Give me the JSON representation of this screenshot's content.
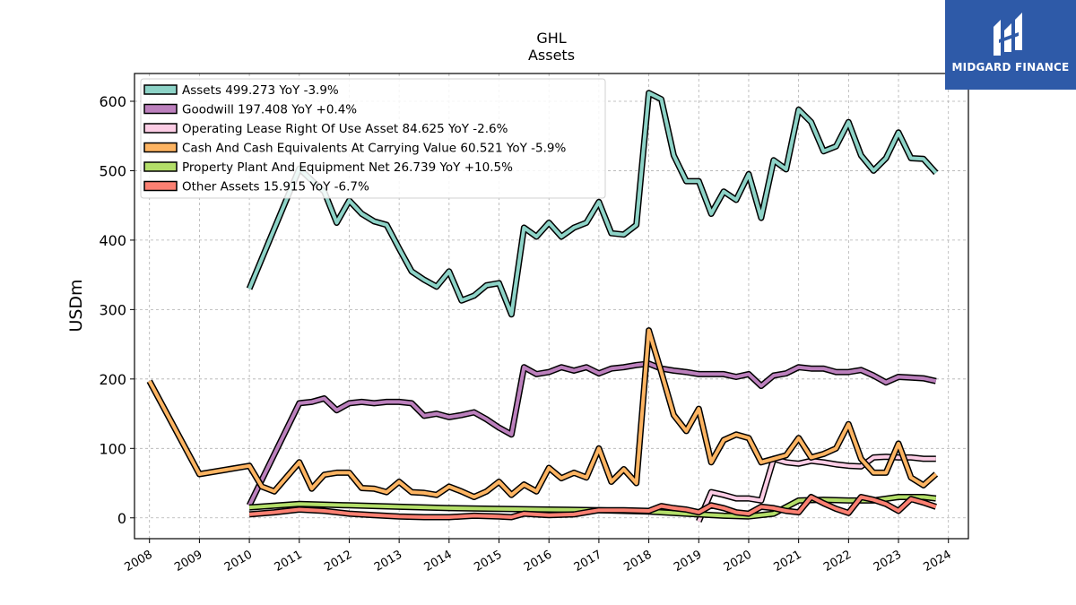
{
  "chart_data": {
    "type": "line",
    "title": "GHL",
    "subtitle": "Assets",
    "ylabel": "USDm",
    "xlabel": "",
    "xlim": [
      2007.7,
      2024.4
    ],
    "ylim": [
      -30,
      640
    ],
    "yticks": [
      0,
      100,
      200,
      300,
      400,
      500,
      600
    ],
    "xticks": [
      2008,
      2009,
      2010,
      2011,
      2012,
      2013,
      2014,
      2015,
      2016,
      2017,
      2018,
      2019,
      2020,
      2021,
      2022,
      2023,
      2024
    ],
    "grid": true,
    "legend_position": "top-left",
    "series": [
      {
        "name": "Assets",
        "legend": "Assets  499.273 YoY -3.9%",
        "color": "#8dd3c7",
        "x": [
          2010.0,
          2011.0,
          2011.25,
          2011.5,
          2011.75,
          2012.0,
          2012.25,
          2012.5,
          2012.75,
          2013.0,
          2013.25,
          2013.5,
          2013.75,
          2014.0,
          2014.25,
          2014.5,
          2014.75,
          2015.0,
          2015.25,
          2015.5,
          2015.75,
          2016.0,
          2016.25,
          2016.5,
          2016.75,
          2017.0,
          2017.25,
          2017.5,
          2017.75,
          2018.0,
          2018.25,
          2018.5,
          2018.75,
          2019.0,
          2019.25,
          2019.5,
          2019.75,
          2020.0,
          2020.25,
          2020.5,
          2020.75,
          2021.0,
          2021.25,
          2021.5,
          2021.75,
          2022.0,
          2022.25,
          2022.5,
          2022.75,
          2023.0,
          2023.25,
          2023.5,
          2023.75
        ],
        "values": [
          330,
          503,
          486,
          470,
          425,
          457,
          438,
          427,
          422,
          388,
          355,
          343,
          333,
          355,
          313,
          320,
          335,
          338,
          293,
          418,
          405,
          425,
          405,
          418,
          425,
          455,
          410,
          408,
          422,
          612,
          603,
          522,
          485,
          485,
          438,
          470,
          458,
          495,
          432,
          515,
          502,
          588,
          570,
          528,
          535,
          570,
          522,
          500,
          518,
          555,
          518,
          517,
          497
        ]
      },
      {
        "name": "Goodwill",
        "legend": "Goodwill  197.408 YoY +0.4%",
        "color": "#bc80bd",
        "x": [
          2010.0,
          2011.0,
          2011.25,
          2011.5,
          2011.75,
          2012.0,
          2012.25,
          2012.5,
          2012.75,
          2013.0,
          2013.25,
          2013.5,
          2013.75,
          2014.0,
          2014.25,
          2014.5,
          2014.75,
          2015.0,
          2015.25,
          2015.5,
          2015.75,
          2016.0,
          2016.25,
          2016.5,
          2016.75,
          2017.0,
          2017.25,
          2017.5,
          2017.75,
          2018.0,
          2018.25,
          2018.5,
          2018.75,
          2019.0,
          2019.25,
          2019.5,
          2019.75,
          2020.0,
          2020.25,
          2020.5,
          2020.75,
          2021.0,
          2021.25,
          2021.5,
          2021.75,
          2022.0,
          2022.25,
          2022.5,
          2022.75,
          2023.0,
          2023.25,
          2023.5,
          2023.75
        ],
        "values": [
          18,
          165,
          167,
          172,
          155,
          165,
          167,
          165,
          167,
          167,
          165,
          147,
          150,
          145,
          148,
          152,
          142,
          130,
          120,
          217,
          207,
          210,
          217,
          212,
          217,
          208,
          215,
          217,
          220,
          222,
          215,
          212,
          210,
          207,
          207,
          207,
          203,
          207,
          190,
          205,
          208,
          217,
          215,
          215,
          210,
          210,
          213,
          205,
          195,
          203,
          202,
          201,
          197
        ]
      },
      {
        "name": "Operating Lease Right Of Use Asset",
        "legend": "Operating Lease Right Of Use Asset  84.625 YoY -2.6%",
        "color": "#fccde5",
        "x": [
          2019.0,
          2019.25,
          2019.5,
          2019.75,
          2020.0,
          2020.25,
          2020.5,
          2020.75,
          2021.0,
          2021.25,
          2021.5,
          2021.75,
          2022.0,
          2022.25,
          2022.5,
          2022.75,
          2023.0,
          2023.25,
          2023.5,
          2023.75
        ],
        "values": [
          -5,
          37,
          33,
          28,
          28,
          25,
          85,
          80,
          78,
          82,
          80,
          77,
          75,
          74,
          87,
          88,
          87,
          87,
          85,
          85
        ]
      },
      {
        "name": "Cash And Cash Equivalents At Carrying Value",
        "legend": "Cash And Cash Equivalents At Carrying Value  60.521 YoY -5.9%",
        "color": "#fdb462",
        "x": [
          2008.0,
          2009.0,
          2010.0,
          2010.25,
          2010.5,
          2011.0,
          2011.25,
          2011.5,
          2011.75,
          2012.0,
          2012.25,
          2012.5,
          2012.75,
          2013.0,
          2013.25,
          2013.5,
          2013.75,
          2014.0,
          2014.25,
          2014.5,
          2014.75,
          2015.0,
          2015.25,
          2015.5,
          2015.75,
          2016.0,
          2016.25,
          2016.5,
          2016.75,
          2017.0,
          2017.25,
          2017.5,
          2017.75,
          2018.0,
          2018.25,
          2018.5,
          2018.75,
          2019.0,
          2019.25,
          2019.5,
          2019.75,
          2020.0,
          2020.25,
          2020.5,
          2020.75,
          2021.0,
          2021.25,
          2021.5,
          2021.75,
          2022.0,
          2022.25,
          2022.5,
          2022.75,
          2023.0,
          2023.25,
          2023.5,
          2023.75
        ],
        "values": [
          197,
          63,
          75,
          45,
          38,
          80,
          42,
          62,
          65,
          65,
          43,
          42,
          37,
          52,
          37,
          36,
          33,
          45,
          38,
          30,
          38,
          52,
          33,
          48,
          38,
          72,
          57,
          65,
          58,
          100,
          52,
          70,
          50,
          270,
          210,
          148,
          125,
          157,
          80,
          112,
          120,
          115,
          80,
          85,
          90,
          115,
          87,
          92,
          100,
          135,
          85,
          65,
          65,
          107,
          58,
          47,
          63
        ]
      },
      {
        "name": "Property Plant And Equipment Net",
        "legend": "Property Plant And Equipment Net  26.739 YoY +10.5%",
        "color": "#b3de69",
        "x": [
          2010.0,
          2011.0,
          2012.0,
          2013.0,
          2014.0,
          2015.0,
          2016.0,
          2017.0,
          2018.0,
          2019.0,
          2019.5,
          2020.0,
          2020.5,
          2021.0,
          2021.5,
          2022.0,
          2022.5,
          2023.0,
          2023.5,
          2023.75
        ],
        "values": [
          15,
          20,
          18,
          16,
          14,
          13,
          12,
          11,
          9,
          5,
          3,
          2,
          6,
          25,
          26,
          25,
          25,
          30,
          30,
          28
        ]
      },
      {
        "name": "Other Assets",
        "legend": "Other Assets  15.915 YoY -6.7%",
        "color": "#fb8072",
        "x": [
          2010.0,
          2010.5,
          2011.0,
          2011.5,
          2012.0,
          2012.5,
          2013.0,
          2013.5,
          2014.0,
          2014.5,
          2015.0,
          2015.25,
          2015.5,
          2016.0,
          2016.5,
          2017.0,
          2017.5,
          2018.0,
          2018.25,
          2018.5,
          2018.75,
          2019.0,
          2019.25,
          2019.5,
          2019.75,
          2020.0,
          2020.25,
          2020.5,
          2020.75,
          2021.0,
          2021.25,
          2021.5,
          2021.75,
          2022.0,
          2022.25,
          2022.5,
          2022.75,
          2023.0,
          2023.25,
          2023.5,
          2023.75
        ],
        "values": [
          5,
          8,
          12,
          10,
          6,
          4,
          2,
          1,
          1,
          3,
          2,
          1,
          6,
          4,
          5,
          11,
          11,
          10,
          17,
          14,
          12,
          8,
          18,
          14,
          8,
          6,
          16,
          14,
          10,
          8,
          30,
          21,
          13,
          7,
          30,
          26,
          20,
          10,
          27,
          22,
          16
        ]
      }
    ]
  },
  "logo": {
    "text": "MIDGARD FINANCE"
  }
}
